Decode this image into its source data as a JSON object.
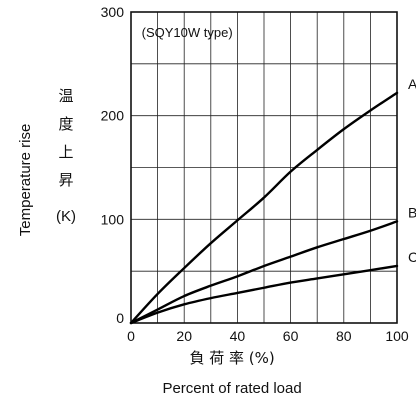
{
  "chart_data": {
    "type": "line",
    "annotation": "(SQY10W type)",
    "xlabel_jp": "負 荷 率 (%)",
    "xlabel": "Percent of rated load",
    "ylabel": "Temperature rise",
    "ylabel_jp_chars": [
      "温",
      "度",
      "上",
      "昇"
    ],
    "yunit": "(K)",
    "xlim": [
      0,
      100
    ],
    "ylim": [
      0,
      300
    ],
    "xticks": [
      "0",
      "20",
      "40",
      "60",
      "80",
      "100"
    ],
    "yticks": [
      "0",
      "100",
      "200",
      "300"
    ],
    "grid": true,
    "series": [
      {
        "name": "A",
        "x": [
          0,
          10,
          20,
          30,
          40,
          50,
          60,
          70,
          80,
          90,
          100
        ],
        "y": [
          0,
          28,
          53,
          77,
          99,
          121,
          146,
          167,
          187,
          205,
          222
        ]
      },
      {
        "name": "B",
        "x": [
          0,
          10,
          20,
          30,
          40,
          50,
          60,
          70,
          80,
          90,
          100
        ],
        "y": [
          0,
          13,
          26,
          36,
          45,
          55,
          64,
          73,
          81,
          89,
          98
        ]
      },
      {
        "name": "C",
        "x": [
          0,
          10,
          20,
          30,
          40,
          50,
          60,
          70,
          80,
          90,
          100
        ],
        "y": [
          0,
          10,
          18,
          24,
          29,
          34,
          39,
          43,
          47,
          51,
          55
        ]
      }
    ]
  }
}
